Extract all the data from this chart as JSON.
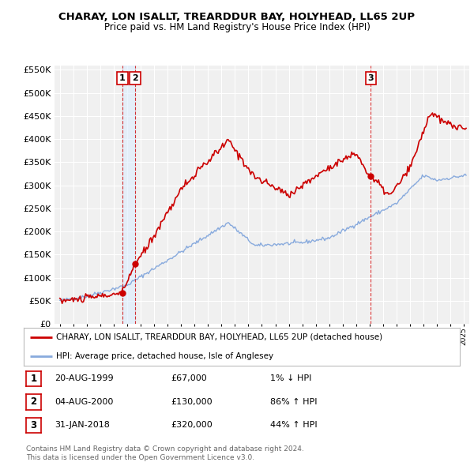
{
  "title": "CHARAY, LON ISALLT, TREARDDUR BAY, HOLYHEAD, LL65 2UP",
  "subtitle": "Price paid vs. HM Land Registry's House Price Index (HPI)",
  "ytick_values": [
    0,
    50000,
    100000,
    150000,
    200000,
    250000,
    300000,
    350000,
    400000,
    450000,
    500000,
    550000
  ],
  "ymax": 560000,
  "legend_line1": "CHARAY, LON ISALLT, TREARDDUR BAY, HOLYHEAD, LL65 2UP (detached house)",
  "legend_line2": "HPI: Average price, detached house, Isle of Anglesey",
  "sale_color": "#cc0000",
  "hpi_color": "#88aadd",
  "vline_color": "#cc0000",
  "vline_fill_color": "#ddeeff",
  "transactions": [
    {
      "label": "1",
      "date_num": 1999.637,
      "price": 67000,
      "text": "20-AUG-1999",
      "amount": "£67,000",
      "pct": "1% ↓ HPI"
    },
    {
      "label": "2",
      "date_num": 2000.587,
      "price": 130000,
      "text": "04-AUG-2000",
      "amount": "£130,000",
      "pct": "86% ↑ HPI"
    },
    {
      "label": "3",
      "date_num": 2018.081,
      "price": 320000,
      "text": "31-JAN-2018",
      "amount": "£320,000",
      "pct": "44% ↑ HPI"
    }
  ],
  "footer_line1": "Contains HM Land Registry data © Crown copyright and database right 2024.",
  "footer_line2": "This data is licensed under the Open Government Licence v3.0.",
  "bg_color": "#ffffff",
  "plot_bg_color": "#f0f0f0"
}
